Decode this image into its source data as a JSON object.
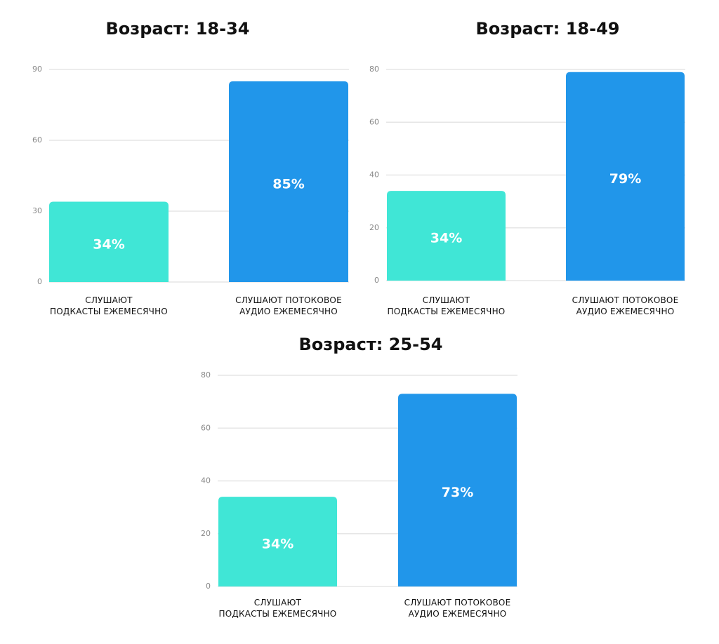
{
  "chart_data": [
    {
      "type": "bar",
      "title": "Возраст: 18-34",
      "categories": [
        "СЛУШАЮТ\nПОДКАСТЫ ЕЖЕМЕСЯЧНО",
        "СЛУШАЮТ ПОТОКОВОЕ\nАУДИО ЕЖЕМЕСЯЧНО"
      ],
      "values": [
        34,
        85
      ],
      "value_labels": [
        "34%",
        "85%"
      ],
      "colors": [
        "#40e6d6",
        "#2196ea"
      ],
      "ylim": [
        0,
        90
      ],
      "yticks": [
        0,
        30,
        60,
        90
      ],
      "grid": true
    },
    {
      "type": "bar",
      "title": "Возраст: 18-49",
      "categories": [
        "СЛУШАЮТ\nПОДКАСТЫ ЕЖЕМЕСЯЧНО",
        "СЛУШАЮТ ПОТОКОВОЕ\nАУДИО ЕЖЕМЕСЯЧНО"
      ],
      "values": [
        34,
        79
      ],
      "value_labels": [
        "34%",
        "79%"
      ],
      "colors": [
        "#40e6d6",
        "#2196ea"
      ],
      "ylim": [
        0,
        80
      ],
      "yticks": [
        0,
        20,
        40,
        60,
        80
      ],
      "grid": true
    },
    {
      "type": "bar",
      "title": "Возраст: 25-54",
      "categories": [
        "СЛУШАЮТ\nПОДКАСТЫ ЕЖЕМЕСЯЧНО",
        "СЛУШАЮТ ПОТОКОВОЕ\nАУДИО ЕЖЕМЕСЯЧНО"
      ],
      "values": [
        34,
        73
      ],
      "value_labels": [
        "34%",
        "73%"
      ],
      "colors": [
        "#40e6d6",
        "#2196ea"
      ],
      "ylim": [
        0,
        80
      ],
      "yticks": [
        0,
        20,
        40,
        60,
        80
      ],
      "grid": true
    }
  ]
}
